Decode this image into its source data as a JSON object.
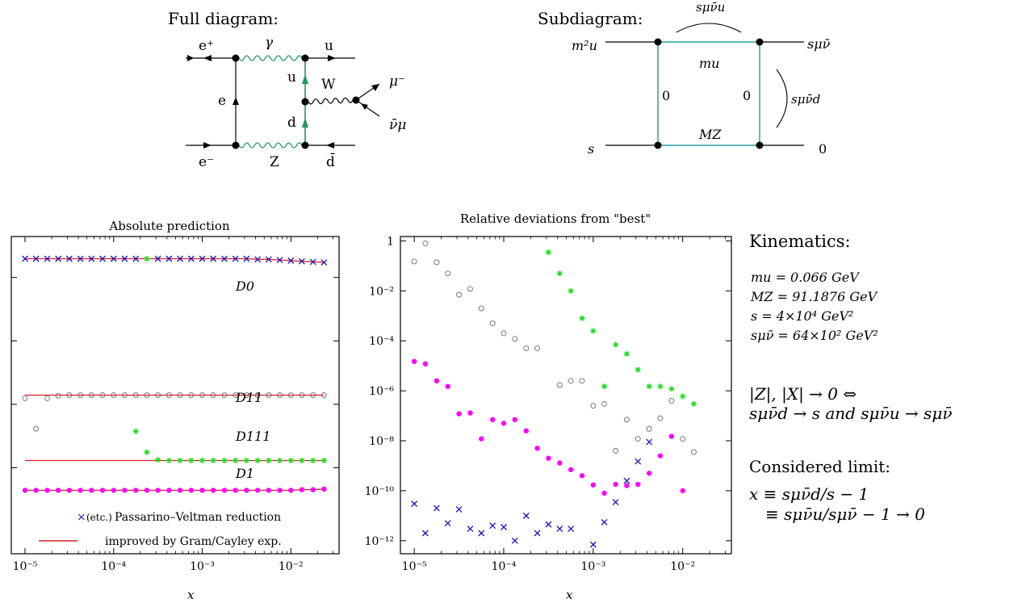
{
  "full_diagram": {
    "caption": "Full diagram:",
    "labels": {
      "e_plus": "e⁺",
      "gamma": "γ",
      "u_out": "u",
      "e_line": "e",
      "u_prop": "u",
      "W": "W",
      "mu_minus": "μ⁻",
      "d_prop": "d",
      "nubar_mu": "ν̄μ",
      "e_minus": "e⁻",
      "Z": "Z",
      "dbar": "d̄"
    }
  },
  "subdiagram": {
    "caption": "Subdiagram:",
    "labels": {
      "top_arc": "sμν̄u",
      "left_top": "m²u",
      "right_top": "sμν̄",
      "right_arc": "sμν̄d",
      "left_bottom": "s",
      "right_bottom": "0",
      "top_mass": "mu",
      "left_mass": "0",
      "right_mass": "0",
      "bottom_mass": "MZ"
    }
  },
  "kinematics": {
    "title": "Kinematics:",
    "lines": [
      "mu = 0.066 GeV",
      "MZ = 91.1876 GeV",
      "s   = 4×10⁴ GeV²",
      "sμν̄ = 64×10² GeV²"
    ],
    "relation_line1": "|Z|, |X| → 0  ⇔",
    "relation_line2": "sμν̄d → s  and  sμν̄u → sμν̄",
    "limit_title": "Considered limit:",
    "limit_line1": "x ≡ sμν̄d/s − 1",
    "limit_line2": "≡ sμν̄u/sμν̄ − 1 → 0"
  },
  "chart_data": [
    {
      "type": "scatter",
      "title": "Absolute prediction",
      "xlabel": "x",
      "ylabel": "",
      "xscale": "log",
      "xlim": [
        7e-06,
        0.035
      ],
      "xticks": [
        "10⁻⁵",
        "10⁻⁴",
        "10⁻³",
        "10⁻²"
      ],
      "legend": {
        "placement": "bottom",
        "entries": [
          {
            "marker": "×",
            "extra": "(etc.)",
            "label": "Passarino–Veltman reduction"
          },
          {
            "marker": "line",
            "label": "improved by Gram/Cayley exp."
          }
        ]
      },
      "colors": {
        "pv": "#1515c8",
        "line": "#d81f26",
        "d11": "#777777",
        "d111": "#22dd22",
        "d1": "#ff00ff"
      },
      "x": [
        1e-05,
        1.33e-05,
        1.78e-05,
        2.37e-05,
        3.16e-05,
        4.22e-05,
        5.62e-05,
        7.5e-05,
        0.0001,
        0.000133,
        0.000178,
        0.000237,
        0.000316,
        0.000422,
        0.000562,
        0.00075,
        0.001,
        0.00133,
        0.00178,
        0.00237,
        0.00316,
        0.00422,
        0.00562,
        0.0075,
        0.01,
        0.0133,
        0.0178,
        0.0237
      ],
      "series": [
        {
          "name": "D0",
          "values": [
            5.6,
            5.6,
            5.6,
            5.6,
            5.6,
            5.6,
            5.6,
            5.6,
            5.6,
            5.6,
            5.6,
            5.6,
            5.6,
            5.6,
            5.6,
            5.6,
            5.6,
            5.6,
            5.6,
            5.6,
            5.6,
            5.59,
            5.59,
            5.58,
            5.57,
            5.56,
            5.55,
            5.54
          ]
        },
        {
          "name": "D11",
          "values": [
            3.4,
            2.92,
            3.4,
            3.44,
            3.45,
            3.45,
            3.45,
            3.45,
            3.45,
            3.45,
            3.45,
            3.45,
            3.45,
            3.45,
            3.45,
            3.45,
            3.45,
            3.45,
            3.45,
            3.45,
            3.45,
            3.45,
            3.45,
            3.45,
            3.45,
            3.45,
            3.45,
            3.45
          ]
        },
        {
          "name": "D111",
          "values": [
            null,
            null,
            null,
            null,
            null,
            null,
            null,
            null,
            null,
            null,
            2.88,
            2.55,
            2.43,
            2.42,
            2.42,
            2.42,
            2.42,
            2.42,
            2.42,
            2.42,
            2.42,
            2.42,
            2.42,
            2.42,
            2.42,
            2.42,
            2.42,
            2.42
          ]
        },
        {
          "name": "D1",
          "values": [
            1.95,
            1.95,
            1.95,
            1.95,
            1.95,
            1.95,
            1.95,
            1.95,
            1.95,
            1.95,
            1.95,
            1.95,
            1.95,
            1.95,
            1.95,
            1.95,
            1.95,
            1.95,
            1.95,
            1.95,
            1.95,
            1.95,
            1.95,
            1.95,
            1.95,
            1.96,
            1.96,
            1.97
          ]
        }
      ]
    },
    {
      "type": "scatter",
      "title": "Relative deviations from \"best\"",
      "xlabel": "x",
      "ylabel": "",
      "xscale": "log",
      "yscale": "log",
      "xlim": [
        7e-06,
        0.035
      ],
      "ylim": [
        3e-13,
        1.5
      ],
      "xticks": [
        "10⁻⁵",
        "10⁻⁴",
        "10⁻³",
        "10⁻²"
      ],
      "yticks": [
        "1",
        "10⁻²",
        "10⁻⁴",
        "10⁻⁶",
        "10⁻⁸",
        "10⁻¹⁰",
        "10⁻¹²"
      ],
      "series": [
        {
          "name": "",
          "marker": "circle-open",
          "color": "#777777",
          "x": [
            1e-05,
            1.33e-05,
            1.78e-05,
            2.37e-05,
            3.16e-05,
            4.22e-05,
            5.62e-05,
            7.5e-05,
            0.0001,
            0.000133,
            0.000178,
            0.000237,
            0.000316,
            0.000422,
            0.000562,
            0.00075,
            0.001,
            0.00133,
            0.00178,
            0.00237,
            0.00316,
            0.00422,
            0.00562,
            0.0075,
            0.01,
            0.0133
          ],
          "values": [
            0.15,
            0.8,
            0.14,
            0.05,
            0.007,
            0.012,
            0.002,
            0.0005,
            0.0002,
            0.00012,
            5e-05,
            5e-05,
            null,
            1.7e-06,
            2.5e-06,
            2.5e-06,
            2.5e-07,
            3e-07,
            4e-09,
            7e-08,
            1.2e-08,
            3e-08,
            8e-08,
            4e-07,
            1.2e-08,
            3.5e-09
          ]
        },
        {
          "name": "",
          "marker": "dot",
          "color": "#ff00ff",
          "x": [
            1e-05,
            1.33e-05,
            1.78e-05,
            2.37e-05,
            3.16e-05,
            4.22e-05,
            5.62e-05,
            7.5e-05,
            0.0001,
            0.000133,
            0.000178,
            0.000237,
            0.000316,
            0.000422,
            0.000562,
            0.00075,
            0.001,
            0.00133,
            0.00178,
            0.00237,
            0.00316,
            0.00422,
            0.00562,
            0.0075,
            0.01,
            0.0133
          ],
          "values": [
            1.5e-05,
            1.2e-05,
            2.5e-06,
            1.5e-06,
            1.2e-07,
            1.3e-07,
            1.2e-08,
            7e-08,
            5e-08,
            7e-08,
            2.5e-08,
            5e-09,
            2e-09,
            1.3e-09,
            7e-10,
            4e-10,
            1.7e-10,
            8e-11,
            1.8e-10,
            1.6e-10,
            1.8e-10,
            5e-10,
            2.5e-09,
            1.5e-08,
            1e-10,
            null
          ]
        },
        {
          "name": "",
          "marker": "star",
          "color": "#22dd22",
          "x": [
            0.000316,
            0.000422,
            0.000562,
            0.00075,
            0.001,
            0.00133,
            0.00178,
            0.00237,
            0.00316,
            0.00422,
            0.00562,
            0.0075,
            0.01,
            0.0133
          ],
          "values": [
            0.35,
            0.05,
            0.01,
            0.0008,
            0.00025,
            1.5e-06,
            7e-05,
            3e-05,
            7e-06,
            1.5e-06,
            1.5e-06,
            1.2e-06,
            6e-07,
            3e-07
          ]
        },
        {
          "name": "",
          "marker": "cross",
          "color": "#1515c8",
          "x": [
            1e-05,
            1.33e-05,
            1.78e-05,
            2.37e-05,
            3.16e-05,
            4.22e-05,
            5.62e-05,
            7.5e-05,
            0.0001,
            0.000133,
            0.000178,
            0.000237,
            0.000316,
            0.000422,
            0.000562,
            0.00075,
            0.001,
            0.00133,
            0.00178,
            0.00237,
            0.00316,
            0.00422,
            0.00562,
            0.0075,
            0.01,
            0.0133
          ],
          "values": [
            3e-11,
            2e-12,
            2e-11,
            5e-12,
            1.8e-11,
            3e-12,
            2e-12,
            4e-12,
            3.5e-12,
            1e-12,
            1e-11,
            2e-12,
            4.5e-12,
            3e-12,
            3e-12,
            null,
            7e-13,
            5.5e-12,
            3.5e-11,
            2.5e-10,
            1.5e-09,
            9e-09,
            null,
            null,
            null,
            null
          ]
        }
      ]
    }
  ]
}
